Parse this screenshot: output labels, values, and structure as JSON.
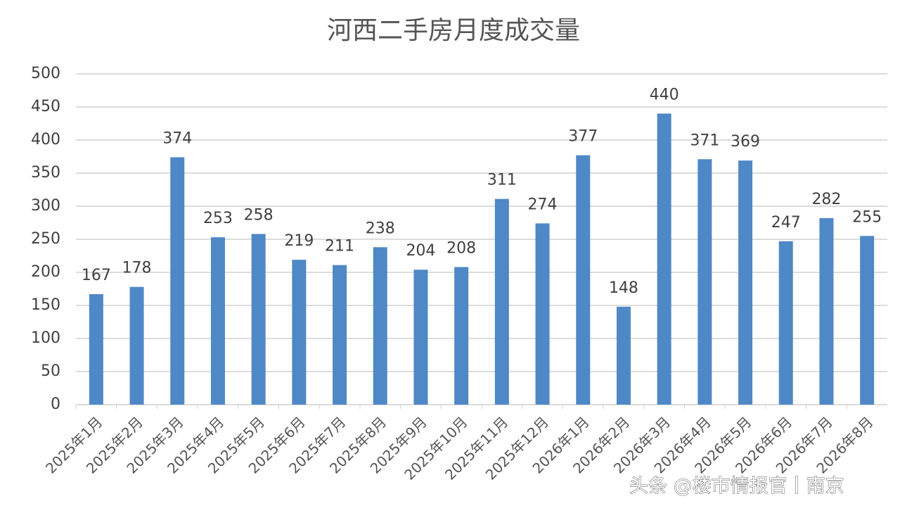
{
  "chart_data": {
    "type": "bar",
    "title": "河西二手房月度成交量",
    "categories": [
      "2025年1月",
      "2025年2月",
      "2025年3月",
      "2025年4月",
      "2025年5月",
      "2025年6月",
      "2025年7月",
      "2025年8月",
      "2025年9月",
      "2025年10月",
      "2025年11月",
      "2025年12月",
      "2026年1月",
      "2026年2月",
      "2026年3月",
      "2026年4月",
      "2026年5月",
      "2026年6月",
      "2026年7月",
      "2026年8月"
    ],
    "values": [
      167,
      178,
      374,
      253,
      258,
      219,
      211,
      238,
      204,
      208,
      311,
      274,
      377,
      148,
      440,
      371,
      369,
      247,
      282,
      255
    ],
    "color": "#4f88c6",
    "ylim": [
      0,
      500
    ],
    "yticks": [
      0,
      50,
      100,
      150,
      200,
      250,
      300,
      350,
      400,
      450,
      500
    ],
    "grid": true,
    "watermark": "头条 @楼市情报官丨南京"
  }
}
